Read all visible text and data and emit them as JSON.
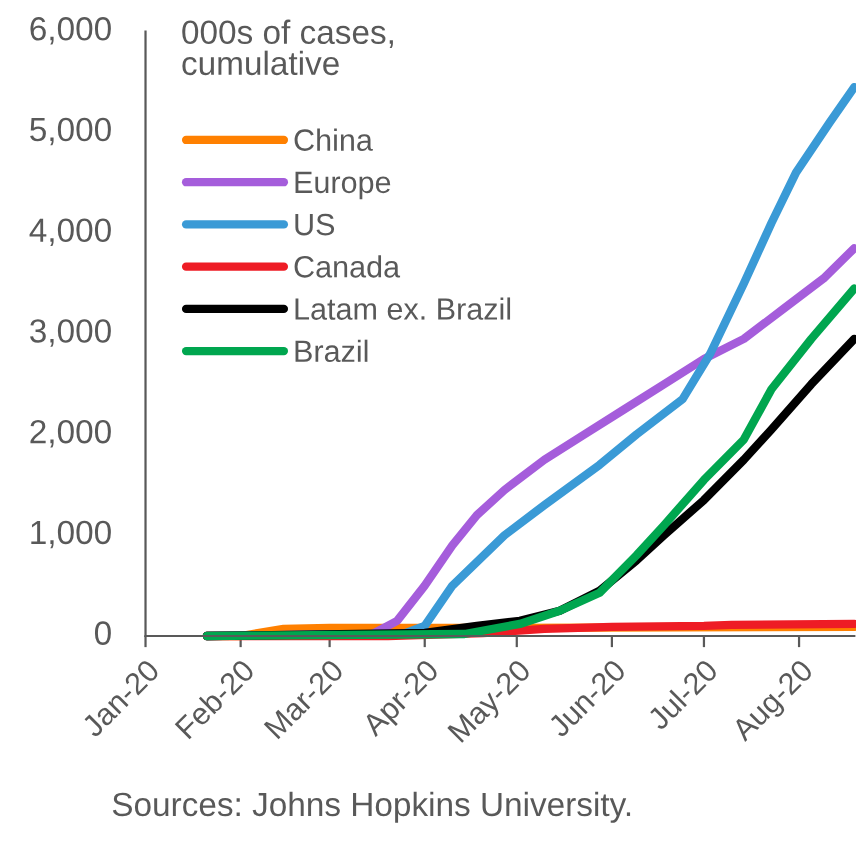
{
  "chart_data": {
    "type": "line",
    "ylabel": "000s of cases,\ncumulative",
    "annotations": [
      "Sources: Johns Hopkins University."
    ],
    "xlim": [
      "2020-01-01",
      "2020-08-19"
    ],
    "xticks": [
      {
        "value": "2020-01-01",
        "label": "Jan-20"
      },
      {
        "value": "2020-02-01",
        "label": "Feb-20"
      },
      {
        "value": "2020-03-01",
        "label": "Mar-20"
      },
      {
        "value": "2020-04-01",
        "label": "Apr-20"
      },
      {
        "value": "2020-05-01",
        "label": "May-20"
      },
      {
        "value": "2020-06-01",
        "label": "Jun-20"
      },
      {
        "value": "2020-07-01",
        "label": "Jul-20"
      },
      {
        "value": "2020-08-01",
        "label": "Aug-20"
      }
    ],
    "ylim": [
      0,
      6000
    ],
    "yticks": [
      {
        "value": 0,
        "label": "0"
      },
      {
        "value": 1000,
        "label": "1,000"
      },
      {
        "value": 2000,
        "label": "2,000"
      },
      {
        "value": 3000,
        "label": "3,000"
      },
      {
        "value": 4000,
        "label": "4,000"
      },
      {
        "value": 5000,
        "label": "5,000"
      },
      {
        "value": 6000,
        "label": "6,000"
      }
    ],
    "grid": false,
    "legend": "top left",
    "marker": "none",
    "line_style": "solid",
    "series": [
      {
        "name": "China",
        "color": "#ff8000",
        "x": [
          "2020-01-21",
          "2020-02-01",
          "2020-02-15",
          "2020-03-01",
          "2020-04-15",
          "2020-08-19"
        ],
        "values": [
          0,
          0,
          70,
          80,
          80,
          90
        ]
      },
      {
        "name": "Europe",
        "color": "#a55ddb",
        "x": [
          "2020-01-21",
          "2020-03-15",
          "2020-03-23",
          "2020-04-01",
          "2020-04-10",
          "2020-04-18",
          "2020-04-27",
          "2020-05-10",
          "2020-05-23",
          "2020-06-05",
          "2020-06-18",
          "2020-07-01",
          "2020-07-14",
          "2020-07-27",
          "2020-08-09",
          "2020-08-19"
        ],
        "values": [
          0,
          20,
          150,
          500,
          900,
          1200,
          1450,
          1750,
          2000,
          2250,
          2500,
          2750,
          2950,
          3250,
          3550,
          3850
        ]
      },
      {
        "name": "US",
        "color": "#3a9ad6",
        "x": [
          "2020-01-21",
          "2020-03-25",
          "2020-04-01",
          "2020-04-10",
          "2020-04-27",
          "2020-05-10",
          "2020-05-28",
          "2020-06-09",
          "2020-06-24",
          "2020-07-03",
          "2020-07-14",
          "2020-07-23",
          "2020-07-31",
          "2020-08-11",
          "2020-08-19"
        ],
        "values": [
          0,
          20,
          100,
          500,
          1000,
          1300,
          1700,
          2000,
          2350,
          2800,
          3500,
          4100,
          4600,
          5100,
          5450
        ]
      },
      {
        "name": "Canada",
        "color": "#ee1c25",
        "x": [
          "2020-01-21",
          "2020-03-20",
          "2020-04-20",
          "2020-05-10",
          "2020-06-01",
          "2020-07-01",
          "2020-07-10",
          "2020-08-19"
        ],
        "values": [
          0,
          0,
          30,
          70,
          90,
          100,
          110,
          120
        ]
      },
      {
        "name": "Latam ex. Brazil",
        "color": "#000000",
        "x": [
          "2020-01-21",
          "2020-04-01",
          "2020-04-18",
          "2020-05-02",
          "2020-05-15",
          "2020-05-28",
          "2020-06-09",
          "2020-06-18",
          "2020-07-01",
          "2020-07-14",
          "2020-07-23",
          "2020-08-05",
          "2020-08-19"
        ],
        "values": [
          0,
          30,
          100,
          150,
          250,
          450,
          750,
          1000,
          1350,
          1750,
          2050,
          2500,
          2950
        ]
      },
      {
        "name": "Brazil",
        "color": "#00a64f",
        "x": [
          "2020-01-21",
          "2020-04-14",
          "2020-05-02",
          "2020-05-15",
          "2020-05-28",
          "2020-06-09",
          "2020-06-18",
          "2020-07-01",
          "2020-07-14",
          "2020-07-23",
          "2020-08-05",
          "2020-08-19"
        ],
        "values": [
          0,
          20,
          120,
          250,
          430,
          800,
          1100,
          1550,
          1950,
          2450,
          2950,
          3450
        ]
      }
    ]
  }
}
